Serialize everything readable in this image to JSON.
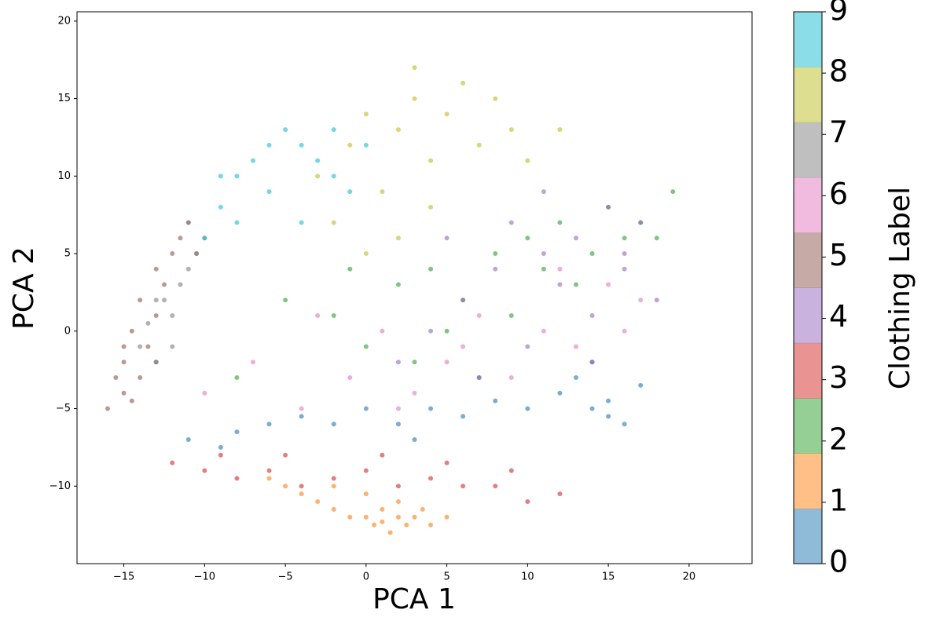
{
  "chart_data": {
    "type": "scatter",
    "xlabel": "PCA 1",
    "ylabel": "PCA 2",
    "xlim": [
      -17.9,
      23.9
    ],
    "ylim": [
      -15.0,
      20.6
    ],
    "xticks": [
      {
        "value": -15,
        "label": "−15"
      },
      {
        "value": -10,
        "label": "−10"
      },
      {
        "value": -5,
        "label": "−5"
      },
      0,
      5,
      10,
      15,
      20
    ],
    "yticks": [
      {
        "value": -10,
        "label": "−10"
      },
      {
        "value": -5,
        "label": "−5"
      },
      0,
      5,
      10,
      15,
      20
    ],
    "colorbar": {
      "label": "Clothing Label",
      "lim": [
        0,
        9
      ],
      "ticks": [
        0,
        1,
        2,
        3,
        4,
        5,
        6,
        7,
        8,
        9
      ]
    },
    "series": [
      {
        "color": "#1f77b4",
        "x": [
          -11,
          -8,
          -6,
          -4,
          -2,
          0,
          2,
          4,
          6,
          8,
          10,
          12,
          13,
          14,
          15,
          16,
          17,
          14,
          15,
          -9,
          3,
          7
        ],
        "values": [
          -7,
          -6.5,
          -6,
          -5.5,
          -6,
          -5,
          -6,
          -5,
          -5.5,
          -4.5,
          -5,
          -4,
          -3,
          -5,
          -4.5,
          -6,
          -3.5,
          -2,
          -5.5,
          -7.5,
          -7,
          -3
        ]
      },
      {
        "color": "#ff7f0e",
        "x": [
          -6,
          -4,
          -3,
          -2,
          -1,
          0,
          0.5,
          1,
          1.5,
          2,
          2.5,
          3,
          3.5,
          4,
          5,
          -2,
          0,
          2,
          -5,
          1
        ],
        "values": [
          -9.5,
          -10.5,
          -11,
          -11.5,
          -12,
          -12,
          -12.5,
          -12.3,
          -13,
          -12,
          -12.5,
          -12,
          -11.5,
          -12.5,
          -12,
          -10,
          -10.5,
          -11,
          -10,
          -11.5
        ]
      },
      {
        "color": "#2ca02c",
        "x": [
          -8,
          -5,
          -2,
          0,
          2,
          4,
          6,
          8,
          10,
          11,
          12,
          14,
          15,
          16,
          17,
          18,
          19,
          13,
          9,
          3,
          -1,
          5
        ],
        "values": [
          -3,
          2,
          1,
          -1,
          3,
          4,
          2,
          5,
          6,
          4,
          7,
          5,
          8,
          6,
          7,
          6,
          9,
          3,
          1,
          -2,
          4,
          0
        ]
      },
      {
        "color": "#d62728",
        "x": [
          -12,
          -10,
          -8,
          -6,
          -4,
          -2,
          0,
          2,
          4,
          6,
          8,
          10,
          12,
          -5,
          1,
          5,
          9,
          -9
        ],
        "values": [
          -8.5,
          -9,
          -9.5,
          -9,
          -10,
          -9.5,
          -9,
          -10,
          -9.5,
          -10,
          -10,
          -11,
          -10.5,
          -8,
          -8,
          -8.5,
          -9,
          -8
        ]
      },
      {
        "color": "#9467bd",
        "x": [
          2,
          4,
          6,
          8,
          9,
          10,
          11,
          12,
          13,
          14,
          15,
          16,
          17,
          18,
          7,
          11,
          14,
          16,
          5
        ],
        "values": [
          -2,
          0,
          2,
          4,
          7,
          -1,
          5,
          3,
          6,
          1,
          8,
          4,
          7,
          2,
          -3,
          9,
          -2,
          5,
          6
        ]
      },
      {
        "color": "#8c564b",
        "x": [
          -16,
          -15.5,
          -15,
          -15,
          -14.5,
          -14,
          -14,
          -13.5,
          -13,
          -13,
          -12.5,
          -12,
          -11.5,
          -11,
          -10.5,
          -14.5,
          -15,
          -13
        ],
        "values": [
          -5,
          -3,
          -4,
          -1,
          0,
          -3,
          2,
          -1,
          1,
          4,
          3,
          5,
          6,
          7,
          5,
          -4.5,
          -2,
          -2
        ]
      },
      {
        "color": "#e377c2",
        "x": [
          -10,
          -7,
          -4,
          -1,
          1,
          3,
          5,
          7,
          9,
          11,
          13,
          15,
          17,
          -3,
          2,
          6,
          12,
          16
        ],
        "values": [
          -4,
          -2,
          -5,
          -3,
          0,
          -4,
          -2,
          1,
          -3,
          0,
          -1,
          3,
          2,
          1,
          -5,
          -1,
          4,
          0
        ]
      },
      {
        "color": "#7f7f7f",
        "x": [
          -14,
          -13.5,
          -13,
          -12.5,
          -12,
          -11.5,
          -11,
          -10.5,
          -10,
          -12,
          -13,
          -11
        ],
        "values": [
          -1,
          0.5,
          -2,
          2,
          1,
          3,
          4,
          5,
          6,
          -1,
          2,
          7
        ]
      },
      {
        "color": "#bcbd22",
        "x": [
          -3,
          -1,
          0,
          1,
          2,
          3,
          4,
          5,
          6,
          7,
          8,
          9,
          10,
          2,
          4,
          -2,
          3,
          0,
          12
        ],
        "values": [
          10,
          12,
          14,
          9,
          13,
          15,
          11,
          14,
          16,
          12,
          15,
          13,
          11,
          6,
          8,
          7,
          17,
          5,
          13
        ]
      },
      {
        "color": "#17becf",
        "x": [
          -10,
          -9,
          -8,
          -7,
          -6,
          -5,
          -4,
          -3,
          -2,
          -1,
          0,
          -6,
          -4,
          -8,
          -9,
          -2
        ],
        "values": [
          6,
          8,
          10,
          11,
          12,
          13,
          12,
          11,
          10,
          9,
          12,
          9,
          7,
          7,
          10,
          13
        ]
      }
    ]
  }
}
